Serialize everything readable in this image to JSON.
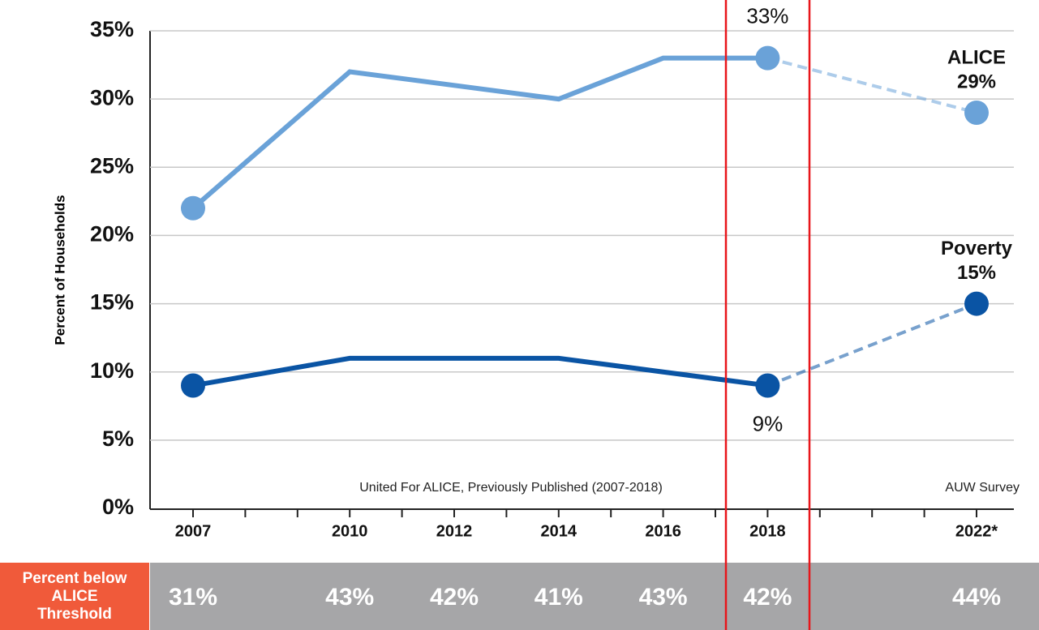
{
  "chart_data": {
    "type": "line",
    "ylabel": "Percent of Households",
    "ylim": [
      0,
      35
    ],
    "yticks": [
      {
        "value": 0,
        "label": "0%"
      },
      {
        "value": 5,
        "label": "5%"
      },
      {
        "value": 10,
        "label": "10%"
      },
      {
        "value": 15,
        "label": "15%"
      },
      {
        "value": 20,
        "label": "20%"
      },
      {
        "value": 25,
        "label": "25%"
      },
      {
        "value": 30,
        "label": "30%"
      },
      {
        "value": 35,
        "label": "35%"
      }
    ],
    "xlim": [
      2007,
      2022
    ],
    "xticks": [
      2007,
      2010,
      2012,
      2014,
      2016,
      2018,
      {
        "value": 2022,
        "label": "2022*"
      }
    ],
    "xminorticks": [
      2008,
      2009,
      2011,
      2013,
      2015,
      2017,
      2019,
      2020,
      2021
    ],
    "grid": true,
    "x": [
      2007,
      2010,
      2014,
      2016,
      2018,
      2022
    ],
    "dashed_after_index": 4,
    "markers": [
      0,
      4,
      5
    ],
    "series": [
      {
        "name": "ALICE",
        "color": "#6aa2d8",
        "values": [
          22,
          32,
          30,
          33,
          33,
          29
        ],
        "value_labels": [
          null,
          null,
          null,
          null,
          "33%",
          "29%"
        ]
      },
      {
        "name": "Poverty",
        "color": "#0a54a4",
        "values": [
          9,
          11,
          11,
          10,
          9,
          15
        ],
        "value_labels": [
          null,
          null,
          null,
          null,
          "9%",
          "15%"
        ]
      }
    ],
    "annotations": [
      "United For ALICE, Previously Published (2007-2018)",
      "AUW Survey"
    ],
    "threshold_row": {
      "label": "Percent below ALICE Threshold",
      "x": [
        2007,
        2010,
        2012,
        2014,
        2016,
        2018,
        2022
      ],
      "values": [
        31,
        43,
        42,
        41,
        43,
        42,
        44
      ],
      "value_labels": [
        "31%",
        "43%",
        "42%",
        "41%",
        "43%",
        "42%",
        "44%"
      ]
    }
  }
}
